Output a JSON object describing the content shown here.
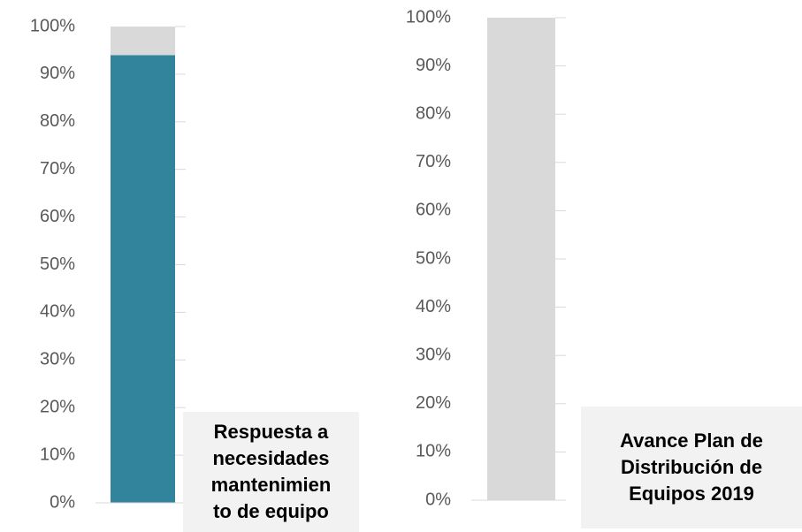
{
  "chart_data": [
    {
      "type": "stacked_bar",
      "title": "Respuesta a\nnecesidades\nmantenimien\nto de equipo",
      "series": [
        {
          "color": "#31849b",
          "values": [
            94
          ]
        },
        {
          "color": "#d9d9d9",
          "values": [
            6
          ]
        }
      ],
      "ylim": [
        0,
        100
      ],
      "yticks": [
        {
          "value": 0,
          "label": "0%"
        },
        {
          "value": 10,
          "label": "10%"
        },
        {
          "value": 20,
          "label": "20%"
        },
        {
          "value": 30,
          "label": "30%"
        },
        {
          "value": 40,
          "label": "40%"
        },
        {
          "value": 50,
          "label": "50%"
        },
        {
          "value": 60,
          "label": "60%"
        },
        {
          "value": 70,
          "label": "70%"
        },
        {
          "value": 80,
          "label": "80%"
        },
        {
          "value": 90,
          "label": "90%"
        },
        {
          "value": 100,
          "label": "100%"
        }
      ]
    },
    {
      "type": "stacked_bar",
      "title": "Avance Plan de\nDistribución de\nEquipos 2019",
      "series": [
        {
          "color": "#31849b",
          "values": [
            0
          ]
        },
        {
          "color": "#d9d9d9",
          "values": [
            100
          ]
        }
      ],
      "ylim": [
        0,
        100
      ],
      "yticks": [
        {
          "value": 0,
          "label": "0%"
        },
        {
          "value": 10,
          "label": "10%"
        },
        {
          "value": 20,
          "label": "20%"
        },
        {
          "value": 30,
          "label": "30%"
        },
        {
          "value": 40,
          "label": "40%"
        },
        {
          "value": 50,
          "label": "50%"
        },
        {
          "value": 60,
          "label": "60%"
        },
        {
          "value": 70,
          "label": "70%"
        },
        {
          "value": 80,
          "label": "80%"
        },
        {
          "value": 90,
          "label": "90%"
        },
        {
          "value": 100,
          "label": "100%"
        }
      ]
    }
  ]
}
